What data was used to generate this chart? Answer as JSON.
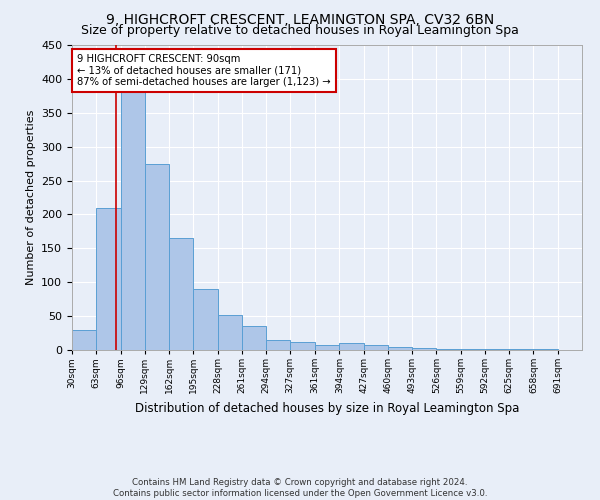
{
  "title": "9, HIGHCROFT CRESCENT, LEAMINGTON SPA, CV32 6BN",
  "subtitle": "Size of property relative to detached houses in Royal Leamington Spa",
  "xlabel": "Distribution of detached houses by size in Royal Leamington Spa",
  "ylabel": "Number of detached properties",
  "footer_line1": "Contains HM Land Registry data © Crown copyright and database right 2024.",
  "footer_line2": "Contains public sector information licensed under the Open Government Licence v3.0.",
  "bin_labels": [
    "30sqm",
    "63sqm",
    "96sqm",
    "129sqm",
    "162sqm",
    "195sqm",
    "228sqm",
    "261sqm",
    "294sqm",
    "327sqm",
    "361sqm",
    "394sqm",
    "427sqm",
    "460sqm",
    "493sqm",
    "526sqm",
    "559sqm",
    "592sqm",
    "625sqm",
    "658sqm",
    "691sqm"
  ],
  "bin_edges": [
    30,
    63,
    96,
    129,
    162,
    195,
    228,
    261,
    294,
    327,
    361,
    394,
    427,
    460,
    493,
    526,
    559,
    592,
    625,
    658,
    691
  ],
  "bar_heights": [
    30,
    210,
    380,
    275,
    165,
    90,
    52,
    35,
    15,
    12,
    8,
    10,
    7,
    5,
    3,
    2,
    2,
    1,
    1,
    1
  ],
  "bar_color": "#aec6e8",
  "bar_edge_color": "#5a9fd4",
  "property_size": 90,
  "property_line_color": "#cc0000",
  "annotation_line1": "9 HIGHCROFT CRESCENT: 90sqm",
  "annotation_line2": "← 13% of detached houses are smaller (171)",
  "annotation_line3": "87% of semi-detached houses are larger (1,123) →",
  "annotation_box_color": "#cc0000",
  "ylim": [
    0,
    450
  ],
  "background_color": "#e8eef8",
  "grid_color": "#ffffff",
  "title_fontsize": 10,
  "subtitle_fontsize": 9
}
